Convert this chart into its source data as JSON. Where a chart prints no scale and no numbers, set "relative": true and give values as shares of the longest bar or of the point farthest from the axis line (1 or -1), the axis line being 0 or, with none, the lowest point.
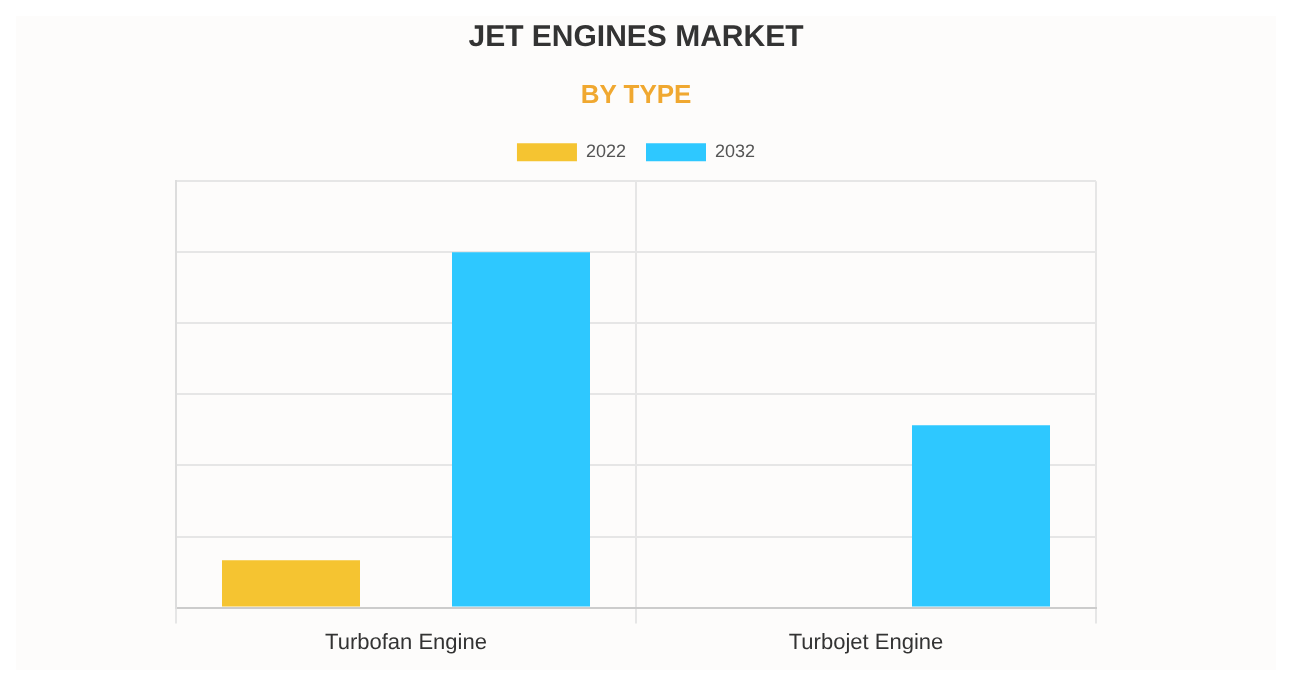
{
  "chart_data": {
    "type": "bar",
    "title": "JET ENGINES MARKET",
    "subtitle": "BY TYPE",
    "categories": [
      "Turbofan Engine",
      "Turbojet Engine"
    ],
    "relative": true,
    "grid": true,
    "legend": "top",
    "series": [
      {
        "name": "2022",
        "color": "#f5c431",
        "values": [
          0.133,
          0
        ]
      },
      {
        "name": "2032",
        "color": "#2ec8ff",
        "values": [
          1,
          0.513
        ]
      }
    ]
  }
}
